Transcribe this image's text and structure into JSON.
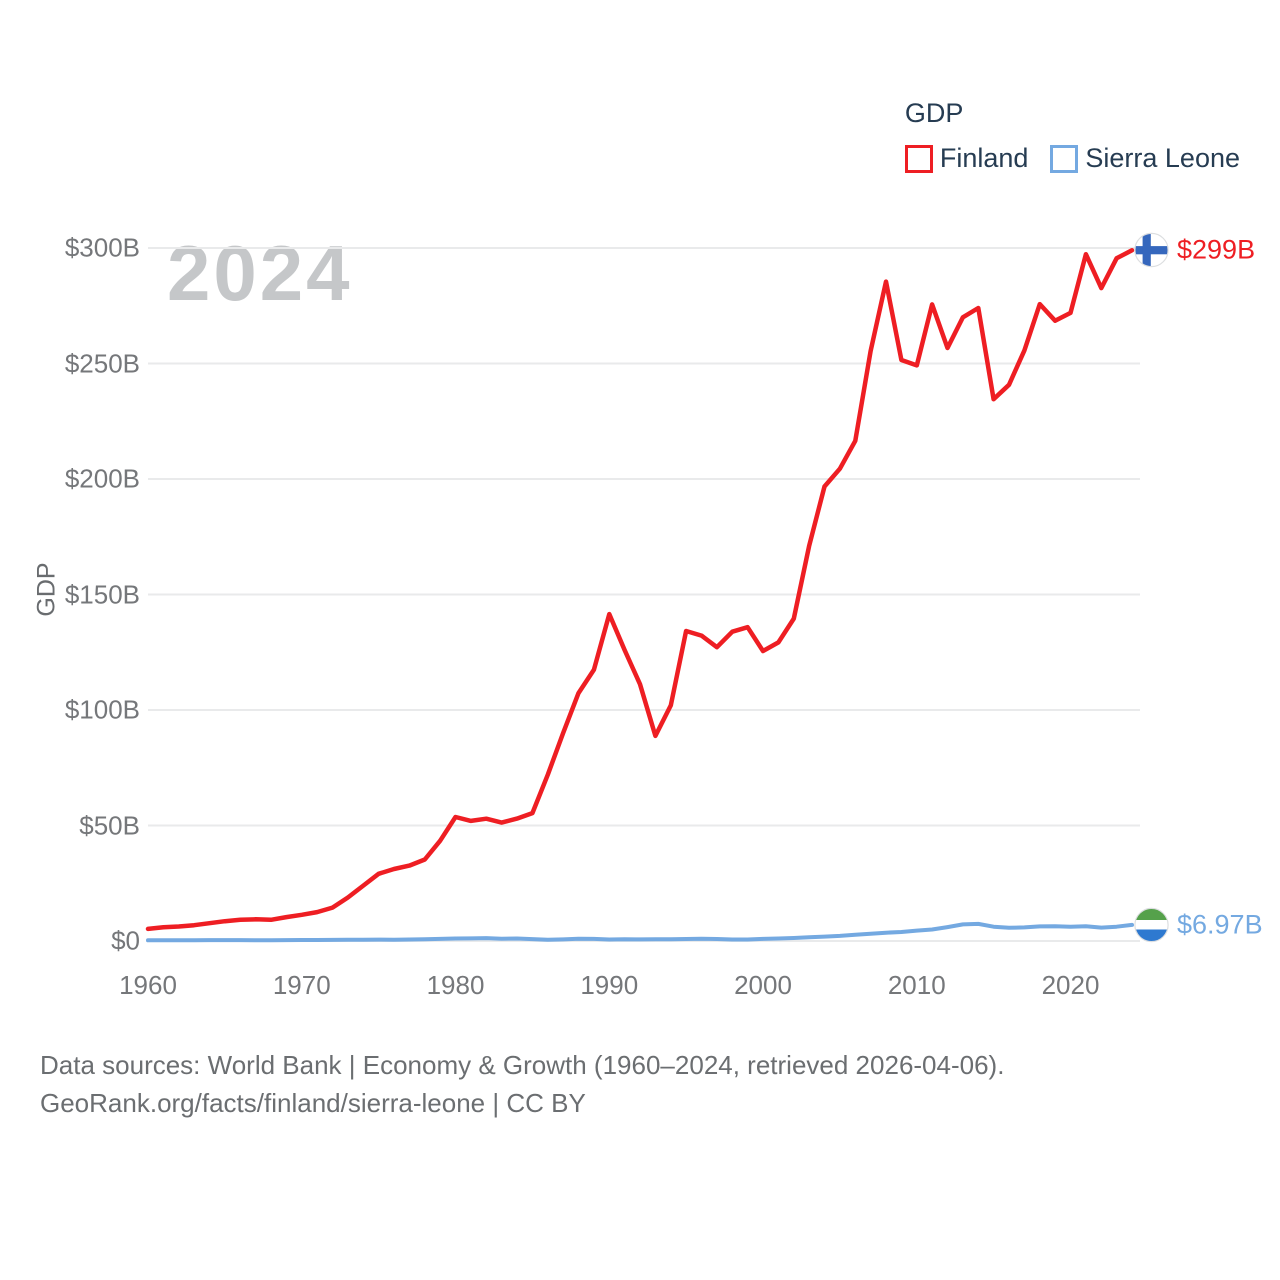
{
  "legend": {
    "title": "GDP",
    "items": [
      {
        "label": "Finland",
        "color": "#ee1e23"
      },
      {
        "label": "Sierra Leone",
        "color": "#74a9e1"
      }
    ]
  },
  "watermark": "2024",
  "y_axis": {
    "title": "GDP",
    "ticks": [
      {
        "label": "$300B",
        "value": 300
      },
      {
        "label": "$250B",
        "value": 250
      },
      {
        "label": "$200B",
        "value": 200
      },
      {
        "label": "$150B",
        "value": 150
      },
      {
        "label": "$100B",
        "value": 100
      },
      {
        "label": "$50B",
        "value": 50
      },
      {
        "label": "$0",
        "value": 0
      }
    ]
  },
  "x_axis": {
    "ticks": [
      {
        "label": "1960",
        "value": 1960
      },
      {
        "label": "1970",
        "value": 1970
      },
      {
        "label": "1980",
        "value": 1980
      },
      {
        "label": "1990",
        "value": 1990
      },
      {
        "label": "2000",
        "value": 2000
      },
      {
        "label": "2010",
        "value": 2010
      },
      {
        "label": "2020",
        "value": 2020
      }
    ]
  },
  "end_labels": [
    {
      "series": "Finland",
      "label": "$299B",
      "color": "#ee1e23",
      "flag": "finland-flag-icon"
    },
    {
      "series": "Sierra Leone",
      "label": "$6.97B",
      "color": "#74a9e1",
      "flag": "sierra-leone-flag-icon"
    }
  ],
  "flag_colors": {
    "finland_cross_blue": "#3567bd",
    "sierra_leone_green": "#55a14b",
    "sierra_leone_blue": "#2e79d0"
  },
  "footer": {
    "line1": "Data sources: World Bank | Economy & Growth (1960–2024, retrieved 2026-04-06).",
    "line2": "GeoRank.org/facts/finland/sierra-leone | CC BY"
  },
  "chart_data": {
    "type": "line",
    "title": "GDP",
    "xlabel": "",
    "ylabel": "GDP",
    "x_start": 1960,
    "x_end": 2024,
    "xlim": [
      1960,
      2024
    ],
    "ylim": [
      0,
      300
    ],
    "grid": true,
    "legend_position": "top-right",
    "series": [
      {
        "name": "Finland",
        "color": "#ee1e23",
        "width": 4.5,
        "values": [
          5.22,
          5.92,
          6.29,
          6.84,
          7.72,
          8.59,
          9.18,
          9.41,
          9.19,
          10.33,
          11.36,
          12.52,
          14.44,
          18.84,
          23.98,
          29.11,
          31.16,
          32.66,
          35.26,
          43.39,
          53.66,
          52.01,
          52.93,
          51.27,
          52.97,
          55.36,
          71.97,
          90.01,
          107.31,
          117.4,
          141.51,
          125.96,
          111.16,
          88.77,
          101.99,
          134.2,
          132.22,
          127.19,
          133.91,
          135.86,
          125.54,
          129.28,
          139.58,
          170.97,
          196.77,
          204.44,
          216.55,
          255.38,
          285.44,
          251.5,
          249.18,
          275.6,
          256.71,
          269.98,
          274.03,
          234.53,
          240.77,
          255.65,
          275.71,
          268.51,
          271.89,
          297.3,
          282.65,
          295.53,
          299.0
        ]
      },
      {
        "name": "Sierra Leone",
        "color": "#74a9e1",
        "width": 4,
        "values": [
          0.32,
          0.33,
          0.34,
          0.36,
          0.38,
          0.4,
          0.37,
          0.35,
          0.32,
          0.37,
          0.43,
          0.42,
          0.46,
          0.5,
          0.56,
          0.62,
          0.56,
          0.64,
          0.8,
          0.93,
          1.1,
          1.11,
          1.25,
          0.98,
          1.09,
          0.83,
          0.51,
          0.68,
          1.0,
          0.92,
          0.65,
          0.78,
          0.68,
          0.77,
          0.79,
          0.87,
          0.94,
          0.85,
          0.67,
          0.67,
          0.9,
          1.1,
          1.3,
          1.6,
          1.9,
          2.2,
          2.7,
          3.1,
          3.6,
          3.9,
          4.5,
          5.0,
          6.0,
          7.2,
          7.4,
          6.2,
          5.7,
          5.9,
          6.3,
          6.4,
          6.2,
          6.4,
          5.8,
          6.2,
          6.97
        ]
      }
    ]
  }
}
